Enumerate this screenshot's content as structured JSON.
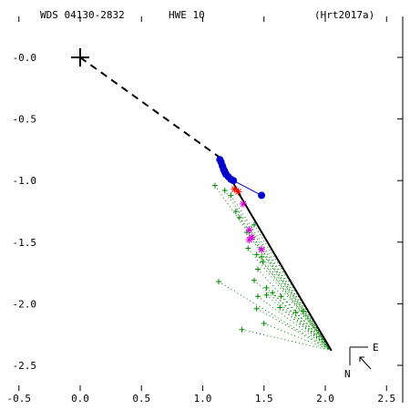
{
  "header": {
    "wds": "WDS 04130-2832",
    "disc": "HWE  10",
    "ref": "(Hrt2017a)"
  },
  "compass": {
    "east": "E",
    "north": "N"
  },
  "colors": {
    "orbit": "#000000",
    "measure_green": "#008800",
    "measure_blue": "#0000cc",
    "measure_magenta": "#dd00dd",
    "measure_red": "#ff0000"
  },
  "chart_data": {
    "type": "scatter",
    "title": "",
    "xlim": [
      -0.5,
      2.5
    ],
    "ylim": [
      -2.5,
      0.0
    ],
    "x_ticks": [
      -0.5,
      0.0,
      0.5,
      1.0,
      1.5,
      2.0,
      2.5
    ],
    "x_tick_labels": [
      "-0.5",
      "0.0",
      "0.5",
      "1.0",
      "1.5",
      "2.0",
      "2.5"
    ],
    "y_ticks": [
      0.0,
      -0.5,
      -1.0,
      -1.5,
      -2.0,
      -2.5
    ],
    "y_tick_labels": [
      "-0.0",
      "-0.5",
      "-1.0",
      "-1.5",
      "-2.0",
      "-2.5"
    ],
    "primary": [
      0.0,
      0.0
    ],
    "node_dashed": [
      [
        0.0,
        0.0
      ],
      [
        1.15,
        -0.82
      ]
    ],
    "orbit": [
      [
        1.15,
        -0.82
      ],
      [
        1.28,
        -1.08
      ],
      [
        2.05,
        -2.38
      ]
    ],
    "end_point": [
      2.05,
      -2.38
    ],
    "green_plus": [
      [
        1.1,
        -1.04
      ],
      [
        1.18,
        -1.08
      ],
      [
        1.23,
        -1.12
      ],
      [
        1.27,
        -1.25
      ],
      [
        1.3,
        -1.3
      ],
      [
        1.36,
        -1.42
      ],
      [
        1.42,
        -1.36
      ],
      [
        1.37,
        -1.55
      ],
      [
        1.44,
        -1.6
      ],
      [
        1.48,
        -1.62
      ],
      [
        1.49,
        -1.66
      ],
      [
        1.45,
        -1.72
      ],
      [
        1.42,
        -1.81
      ],
      [
        1.52,
        -1.87
      ],
      [
        1.57,
        -1.91
      ],
      [
        1.64,
        -1.94
      ],
      [
        1.52,
        -1.93
      ],
      [
        1.45,
        -1.94
      ],
      [
        1.13,
        -1.82
      ],
      [
        1.44,
        -2.04
      ],
      [
        1.63,
        -2.03
      ],
      [
        1.76,
        -2.07
      ],
      [
        1.82,
        -2.06
      ],
      [
        1.5,
        -2.16
      ],
      [
        1.32,
        -2.21
      ]
    ],
    "blue_dots": [
      [
        1.14,
        -0.83
      ],
      [
        1.15,
        -0.85
      ],
      [
        1.16,
        -0.88
      ],
      [
        1.17,
        -0.91
      ],
      [
        1.18,
        -0.93
      ],
      [
        1.19,
        -0.95
      ],
      [
        1.21,
        -0.97
      ],
      [
        1.23,
        -0.99
      ],
      [
        1.25,
        -1.0
      ],
      [
        1.48,
        -1.12
      ]
    ],
    "magenta_star": [
      [
        1.33,
        -1.19
      ],
      [
        1.38,
        -1.4
      ],
      [
        1.4,
        -1.46
      ],
      [
        1.38,
        -1.48
      ],
      [
        1.48,
        -1.56
      ]
    ],
    "red_star": [
      [
        1.26,
        -1.07
      ],
      [
        1.29,
        -1.09
      ]
    ]
  }
}
